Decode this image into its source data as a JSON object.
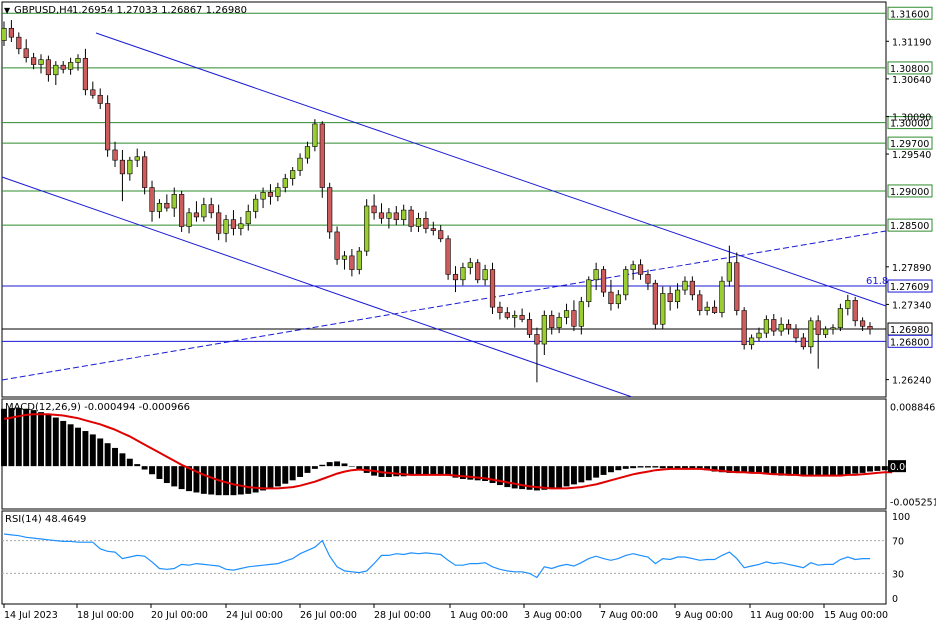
{
  "window": {
    "title": "GBPUSD,H4",
    "ohlc": "1.26954 1.27033 1.26867 1.26980"
  },
  "colors": {
    "bull": "#9acd32",
    "bear": "#cd5c5c",
    "grid_support": "#2e8b2e",
    "trend": "#1a1ad6",
    "macd_signal": "#e00000",
    "rsi_line": "#1e90ff",
    "axis": "#000000"
  },
  "chart_data": [
    {
      "type": "candlestick",
      "title": "GBPUSD,H4",
      "ylim": [
        1.26,
        1.3175
      ],
      "price_ticks": [
        "1.31190",
        "1.30640",
        "1.30090",
        "1.29540",
        "1.27890",
        "1.27340",
        "1.26240"
      ],
      "levels": [
        {
          "label": "1.31600",
          "value": 1.316,
          "style": "green"
        },
        {
          "label": "1.30800",
          "value": 1.308,
          "style": "green"
        },
        {
          "label": "1.30000",
          "value": 1.3,
          "style": "green"
        },
        {
          "label": "1.29700",
          "value": 1.297,
          "style": "green"
        },
        {
          "label": "1.29000",
          "value": 1.29,
          "style": "green"
        },
        {
          "label": "1.28500",
          "value": 1.285,
          "style": "green"
        },
        {
          "label": "1.27609",
          "value": 1.27609,
          "style": "blue"
        },
        {
          "label": "1.26980",
          "value": 1.2698,
          "style": "black"
        },
        {
          "label": "1.26800",
          "value": 1.268,
          "style": "blue"
        }
      ],
      "fib_label": "61.8",
      "dates": [
        "14 Jul 2023",
        "18 Jul 00:00",
        "20 Jul 00:00",
        "24 Jul 00:00",
        "26 Jul 00:00",
        "28 Jul 00:00",
        "1 Aug 00:00",
        "3 Aug 00:00",
        "7 Aug 00:00",
        "9 Aug 00:00",
        "11 Aug 00:00",
        "15 Aug 00:00"
      ],
      "candles": [
        [
          1.312,
          1.3148,
          1.3112,
          1.3138
        ],
        [
          1.3138,
          1.315,
          1.3118,
          1.3125
        ],
        [
          1.3125,
          1.3132,
          1.31,
          1.3108
        ],
        [
          1.3108,
          1.3122,
          1.3088,
          1.3095
        ],
        [
          1.3095,
          1.3102,
          1.3078,
          1.3085
        ],
        [
          1.3085,
          1.31,
          1.3072,
          1.3092
        ],
        [
          1.3092,
          1.3098,
          1.306,
          1.307
        ],
        [
          1.307,
          1.309,
          1.3055,
          1.3084
        ],
        [
          1.3084,
          1.309,
          1.3072,
          1.3078
        ],
        [
          1.3078,
          1.3095,
          1.307,
          1.3088
        ],
        [
          1.3088,
          1.31,
          1.3076,
          1.3094
        ],
        [
          1.3094,
          1.3108,
          1.304,
          1.3048
        ],
        [
          1.3048,
          1.306,
          1.3035,
          1.304
        ],
        [
          1.304,
          1.305,
          1.302,
          1.3028
        ],
        [
          1.3028,
          1.304,
          1.295,
          1.296
        ],
        [
          1.296,
          1.2972,
          1.2935,
          1.2945
        ],
        [
          1.2945,
          1.296,
          1.2885,
          1.2925
        ],
        [
          1.2925,
          1.295,
          1.2915,
          1.2945
        ],
        [
          1.2945,
          1.2962,
          1.2935,
          1.295
        ],
        [
          1.295,
          1.2958,
          1.2895,
          1.2905
        ],
        [
          1.2905,
          1.2915,
          1.2855,
          1.287
        ],
        [
          1.287,
          1.2888,
          1.286,
          1.2882
        ],
        [
          1.2882,
          1.2895,
          1.287,
          1.2875
        ],
        [
          1.2875,
          1.2905,
          1.2862,
          1.2895
        ],
        [
          1.2895,
          1.29,
          1.284,
          1.2848
        ],
        [
          1.2848,
          1.2875,
          1.2838,
          1.2868
        ],
        [
          1.2868,
          1.2885,
          1.2855,
          1.2862
        ],
        [
          1.2862,
          1.289,
          1.2855,
          1.288
        ],
        [
          1.288,
          1.289,
          1.286,
          1.2868
        ],
        [
          1.2868,
          1.288,
          1.2828,
          1.2838
        ],
        [
          1.2838,
          1.2865,
          1.2825,
          1.2858
        ],
        [
          1.2858,
          1.2872,
          1.2835,
          1.2845
        ],
        [
          1.2845,
          1.2862,
          1.2835,
          1.2852
        ],
        [
          1.2852,
          1.288,
          1.2842,
          1.287
        ],
        [
          1.287,
          1.2895,
          1.286,
          1.2888
        ],
        [
          1.2888,
          1.2905,
          1.2875,
          1.2898
        ],
        [
          1.2898,
          1.291,
          1.288,
          1.2892
        ],
        [
          1.2892,
          1.2912,
          1.2885,
          1.2905
        ],
        [
          1.2905,
          1.2925,
          1.2898,
          1.2918
        ],
        [
          1.2918,
          1.2935,
          1.2908,
          1.293
        ],
        [
          1.293,
          1.2955,
          1.2922,
          1.2948
        ],
        [
          1.2948,
          1.2972,
          1.294,
          1.2965
        ],
        [
          1.2965,
          1.3005,
          1.2958,
          1.2998
        ],
        [
          1.2998,
          1.3002,
          1.289,
          1.2905
        ],
        [
          1.2905,
          1.2912,
          1.283,
          1.284
        ],
        [
          1.284,
          1.2848,
          1.2792,
          1.28
        ],
        [
          1.28,
          1.2812,
          1.2785,
          1.2805
        ],
        [
          1.2805,
          1.2815,
          1.2775,
          1.2785
        ],
        [
          1.2785,
          1.2818,
          1.2778,
          1.2812
        ],
        [
          1.2812,
          1.2888,
          1.2805,
          1.2878
        ],
        [
          1.2878,
          1.2895,
          1.2858,
          1.2868
        ],
        [
          1.2868,
          1.2882,
          1.2852,
          1.286
        ],
        [
          1.286,
          1.2875,
          1.2845,
          1.2868
        ],
        [
          1.2868,
          1.2878,
          1.285,
          1.2858
        ],
        [
          1.2858,
          1.288,
          1.285,
          1.2872
        ],
        [
          1.2872,
          1.2878,
          1.284,
          1.2848
        ],
        [
          1.2848,
          1.2868,
          1.284,
          1.286
        ],
        [
          1.286,
          1.287,
          1.2838,
          1.2845
        ],
        [
          1.2845,
          1.2855,
          1.2835,
          1.2842
        ],
        [
          1.2842,
          1.285,
          1.2825,
          1.283
        ],
        [
          1.283,
          1.2835,
          1.277,
          1.2778
        ],
        [
          1.2778,
          1.279,
          1.2752,
          1.277
        ],
        [
          1.277,
          1.2795,
          1.2762,
          1.2788
        ],
        [
          1.2788,
          1.2802,
          1.2778,
          1.2795
        ],
        [
          1.2795,
          1.28,
          1.2765,
          1.277
        ],
        [
          1.277,
          1.2792,
          1.2762,
          1.2785
        ],
        [
          1.2785,
          1.2795,
          1.272,
          1.273
        ],
        [
          1.273,
          1.2738,
          1.2712,
          1.2722
        ],
        [
          1.2722,
          1.273,
          1.2712,
          1.2715
        ],
        [
          1.2715,
          1.2725,
          1.27,
          1.2718
        ],
        [
          1.2718,
          1.2728,
          1.2708,
          1.2712
        ],
        [
          1.2712,
          1.2722,
          1.2685,
          1.269
        ],
        [
          1.269,
          1.27,
          1.262,
          1.2676
        ],
        [
          1.2676,
          1.2725,
          1.266,
          1.2718
        ],
        [
          1.2718,
          1.2725,
          1.269,
          1.27
        ],
        [
          1.27,
          1.2722,
          1.2692,
          1.2715
        ],
        [
          1.2715,
          1.2735,
          1.2705,
          1.2725
        ],
        [
          1.2725,
          1.274,
          1.2695,
          1.2702
        ],
        [
          1.2702,
          1.2745,
          1.269,
          1.2738
        ],
        [
          1.2738,
          1.2775,
          1.273,
          1.277
        ],
        [
          1.277,
          1.2795,
          1.2755,
          1.2785
        ],
        [
          1.2785,
          1.279,
          1.2745,
          1.2752
        ],
        [
          1.2752,
          1.277,
          1.2725,
          1.2735
        ],
        [
          1.2735,
          1.2755,
          1.2728,
          1.2748
        ],
        [
          1.2748,
          1.279,
          1.274,
          1.2785
        ],
        [
          1.2785,
          1.2798,
          1.277,
          1.2792
        ],
        [
          1.2792,
          1.28,
          1.277,
          1.2778
        ],
        [
          1.2778,
          1.2785,
          1.2755,
          1.2765
        ],
        [
          1.2765,
          1.277,
          1.2698,
          1.2705
        ],
        [
          1.2705,
          1.276,
          1.2698,
          1.275
        ],
        [
          1.275,
          1.276,
          1.2725,
          1.2738
        ],
        [
          1.2738,
          1.2765,
          1.2728,
          1.2755
        ],
        [
          1.2755,
          1.2775,
          1.2748,
          1.2768
        ],
        [
          1.2768,
          1.2775,
          1.274,
          1.2748
        ],
        [
          1.2748,
          1.2755,
          1.2718,
          1.2725
        ],
        [
          1.2725,
          1.2738,
          1.2718,
          1.273
        ],
        [
          1.273,
          1.274,
          1.272,
          1.2722
        ],
        [
          1.2722,
          1.2775,
          1.2715,
          1.2768
        ],
        [
          1.2768,
          1.282,
          1.276,
          1.2795
        ],
        [
          1.2795,
          1.281,
          1.2718,
          1.2725
        ],
        [
          1.2725,
          1.273,
          1.2668,
          1.2675
        ],
        [
          1.2675,
          1.269,
          1.2668,
          1.2685
        ],
        [
          1.2685,
          1.27,
          1.268,
          1.2692
        ],
        [
          1.2692,
          1.2718,
          1.2685,
          1.2712
        ],
        [
          1.2712,
          1.272,
          1.2688,
          1.2695
        ],
        [
          1.2695,
          1.2715,
          1.2688,
          1.2705
        ],
        [
          1.2705,
          1.2712,
          1.269,
          1.2698
        ],
        [
          1.2698,
          1.2705,
          1.2678,
          1.2685
        ],
        [
          1.2685,
          1.2692,
          1.2668,
          1.2672
        ],
        [
          1.2672,
          1.2715,
          1.2662,
          1.271
        ],
        [
          1.271,
          1.2718,
          1.264,
          1.269
        ],
        [
          1.269,
          1.2702,
          1.2685,
          1.2698
        ],
        [
          1.2698,
          1.2705,
          1.269,
          1.27
        ],
        [
          1.27,
          1.2735,
          1.2695,
          1.2728
        ],
        [
          1.2728,
          1.2748,
          1.2718,
          1.274
        ],
        [
          1.274,
          1.2745,
          1.2702,
          1.271
        ],
        [
          1.271,
          1.2715,
          1.2695,
          1.2702
        ],
        [
          1.2702,
          1.2708,
          1.269,
          1.2698
        ]
      ]
    },
    {
      "type": "histogram",
      "title": "MACD(12,26,9) -0.000494 -0.000966",
      "ylim": [
        -0.0062,
        0.0098
      ],
      "ticks": [
        "0.008846",
        "0.00",
        "-0.005251"
      ],
      "current_label": "0.00",
      "hist": [
        0.0085,
        0.0086,
        0.0086,
        0.0085,
        0.0083,
        0.008,
        0.0076,
        0.0072,
        0.0067,
        0.0062,
        0.0057,
        0.0052,
        0.0047,
        0.0041,
        0.0034,
        0.0027,
        0.0019,
        0.0011,
        0.0003,
        -0.0005,
        -0.0012,
        -0.0019,
        -0.0025,
        -0.003,
        -0.0034,
        -0.0037,
        -0.0039,
        -0.0041,
        -0.0042,
        -0.0043,
        -0.0043,
        -0.0043,
        -0.0042,
        -0.0041,
        -0.0039,
        -0.0036,
        -0.0033,
        -0.003,
        -0.0026,
        -0.0021,
        -0.0016,
        -0.001,
        -0.0004,
        0.0002,
        0.0006,
        0.0007,
        0.0004,
        0.0,
        -0.0005,
        -0.001,
        -0.0014,
        -0.0016,
        -0.0016,
        -0.0015,
        -0.0015,
        -0.0014,
        -0.0013,
        -0.0012,
        -0.0012,
        -0.0012,
        -0.0014,
        -0.0017,
        -0.0019,
        -0.002,
        -0.0021,
        -0.0022,
        -0.0025,
        -0.0028,
        -0.0031,
        -0.0033,
        -0.0034,
        -0.0035,
        -0.0036,
        -0.0035,
        -0.0034,
        -0.0032,
        -0.003,
        -0.0027,
        -0.0024,
        -0.0021,
        -0.0017,
        -0.0013,
        -0.0009,
        -0.0006,
        -0.0004,
        -0.0003,
        -0.0002,
        -0.0002,
        -0.0002,
        -0.0003,
        -0.0003,
        -0.0003,
        -0.0003,
        -0.0003,
        -0.0004,
        -0.0006,
        -0.0008,
        -0.0009,
        -0.001,
        -0.001,
        -0.001,
        -0.001,
        -0.0011,
        -0.0012,
        -0.0013,
        -0.0014,
        -0.0014,
        -0.0014,
        -0.0014,
        -0.0014,
        -0.0014,
        -0.0015,
        -0.0015,
        -0.0015,
        -0.0013,
        -0.0011,
        -0.001,
        -0.0008,
        -0.0007,
        -0.0006,
        -0.0006,
        -0.0005
      ],
      "signal": [
        0.007,
        0.0072,
        0.0074,
        0.0076,
        0.0077,
        0.0077,
        0.0077,
        0.0076,
        0.0075,
        0.0073,
        0.0071,
        0.0068,
        0.0065,
        0.0062,
        0.0058,
        0.0054,
        0.0049,
        0.0044,
        0.0038,
        0.0032,
        0.0026,
        0.002,
        0.0014,
        0.0008,
        0.0002,
        -0.0003,
        -0.0008,
        -0.0013,
        -0.0017,
        -0.0021,
        -0.0024,
        -0.0027,
        -0.0029,
        -0.0031,
        -0.0032,
        -0.0033,
        -0.0033,
        -0.0033,
        -0.0032,
        -0.0031,
        -0.0029,
        -0.0026,
        -0.0023,
        -0.0019,
        -0.0015,
        -0.0011,
        -0.0008,
        -0.0006,
        -0.0005,
        -0.0006,
        -0.0007,
        -0.0009,
        -0.001,
        -0.0011,
        -0.0012,
        -0.0013,
        -0.0013,
        -0.0013,
        -0.0013,
        -0.0013,
        -0.0013,
        -0.0014,
        -0.0015,
        -0.0016,
        -0.0017,
        -0.0018,
        -0.002,
        -0.0022,
        -0.0024,
        -0.0026,
        -0.0028,
        -0.003,
        -0.0031,
        -0.0032,
        -0.0033,
        -0.0033,
        -0.0033,
        -0.0032,
        -0.0031,
        -0.0029,
        -0.0027,
        -0.0024,
        -0.0021,
        -0.0018,
        -0.0015,
        -0.0012,
        -0.001,
        -0.0008,
        -0.0006,
        -0.0005,
        -0.0004,
        -0.0004,
        -0.0004,
        -0.0004,
        -0.0004,
        -0.0005,
        -0.0006,
        -0.0007,
        -0.0008,
        -0.0009,
        -0.0009,
        -0.001,
        -0.001,
        -0.0011,
        -0.0012,
        -0.0012,
        -0.0013,
        -0.0013,
        -0.0014,
        -0.0014,
        -0.0014,
        -0.0014,
        -0.0014,
        -0.0014,
        -0.0013,
        -0.0013,
        -0.0012,
        -0.0011,
        -0.001,
        -0.0009,
        -0.0009
      ]
    },
    {
      "type": "line",
      "title": "RSI(14) 48.4649",
      "ylim": [
        0,
        100
      ],
      "ticks": [
        "100",
        "70",
        "30",
        "0"
      ],
      "levels": [
        70,
        30
      ],
      "values": [
        78,
        77,
        76,
        74,
        73,
        72,
        71,
        70,
        69,
        69,
        68,
        68,
        68,
        60,
        57,
        56,
        48,
        50,
        52,
        51,
        44,
        36,
        35,
        36,
        41,
        40,
        42,
        41,
        40,
        39,
        35,
        34,
        36,
        38,
        39,
        40,
        41,
        42,
        45,
        48,
        54,
        58,
        62,
        70,
        51,
        38,
        33,
        32,
        31,
        33,
        42,
        52,
        52,
        54,
        53,
        55,
        54,
        55,
        54,
        53,
        46,
        40,
        40,
        42,
        42,
        43,
        38,
        35,
        33,
        32,
        32,
        30,
        25,
        38,
        36,
        39,
        41,
        39,
        43,
        48,
        51,
        48,
        46,
        48,
        52,
        54,
        52,
        50,
        42,
        48,
        47,
        50,
        50,
        48,
        46,
        47,
        47,
        52,
        56,
        48,
        37,
        39,
        41,
        44,
        42,
        43,
        41,
        39,
        37,
        43,
        40,
        41,
        41,
        47,
        50,
        47,
        48,
        48
      ]
    }
  ]
}
